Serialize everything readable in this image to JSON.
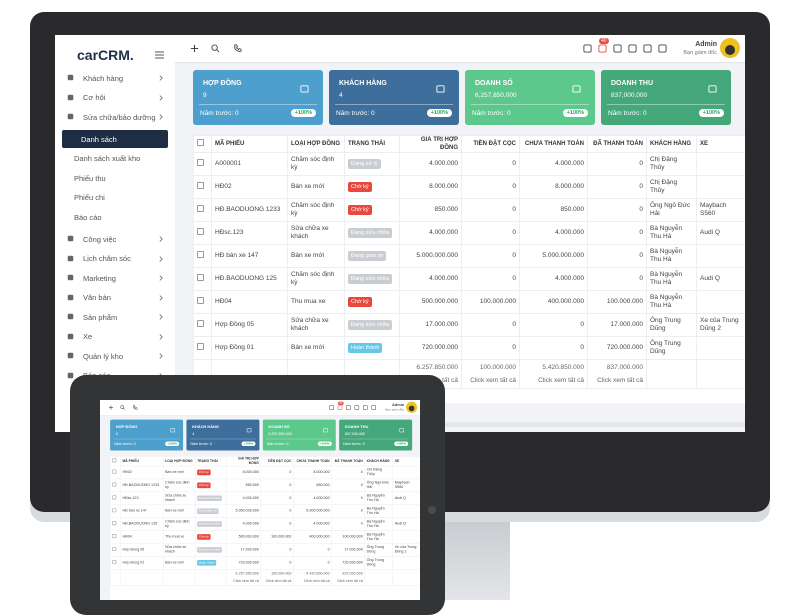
{
  "app": {
    "logo": "carCRM.",
    "notification_count": "40",
    "user": {
      "name": "Admin",
      "role": "Bạn giám đốc"
    },
    "menu": [
      {
        "label": "Khách hàng"
      },
      {
        "label": "Cơ hội"
      },
      {
        "label": "Sửa chữa/bảo dưỡng"
      },
      {
        "label": "Danh sách",
        "sub": true,
        "active": true
      },
      {
        "label": "Danh sách xuất kho",
        "sub": true
      },
      {
        "label": "Phiếu thu",
        "sub": true
      },
      {
        "label": "Phiếu chi",
        "sub": true
      },
      {
        "label": "Báo cáo",
        "sub": true
      },
      {
        "label": "Công việc"
      },
      {
        "label": "Lịch chăm sóc"
      },
      {
        "label": "Marketing"
      },
      {
        "label": "Văn bản"
      },
      {
        "label": "Sản phẩm"
      },
      {
        "label": "Xe"
      },
      {
        "label": "Quản lý kho"
      },
      {
        "label": "Báo cáo"
      }
    ],
    "cards": [
      {
        "title": "HỢP ĐỒNG",
        "value": "9",
        "previous": "Năm trước: 0",
        "change": "+100%",
        "color": "#4d9fce"
      },
      {
        "title": "KHÁCH HÀNG",
        "value": "4",
        "previous": "Năm trước: 0",
        "change": "+100%",
        "color": "#3e6f9c"
      },
      {
        "title": "DOANH SỐ",
        "value": "6,257,850,000",
        "previous": "Năm trước: 0",
        "change": "+100%",
        "color": "#5cc88c"
      },
      {
        "title": "DOANH THU",
        "value": "837,000,000",
        "previous": "Năm trước: 0",
        "change": "+100%",
        "color": "#45a87b"
      }
    ],
    "status_colors": {
      "Đang xử lý": "#c9cdd2",
      "Chờ ký": "#e8493f",
      "Đang sửa chữa": "#c9cdd2",
      "Đang giao xe": "#c9cdd2",
      "Hoàn thành": "#67c7e6"
    },
    "table": {
      "headers": [
        "MÃ PHIẾU",
        "LOẠI HỢP ĐỒNG",
        "TRẠNG THÁI",
        "GIÁ TRỊ HỢP ĐỒNG",
        "TIỀN ĐẶT CỌC",
        "CHƯA THANH TOÁN",
        "ĐÃ THANH TOÁN",
        "KHÁCH HÀNG",
        "XE"
      ],
      "rows": [
        [
          "A000001",
          "Chăm sóc định kỳ",
          "Đang xử lý",
          "4.000.000",
          "0",
          "4.000.000",
          "0",
          "Chị Đặng Thủy",
          null
        ],
        [
          "HĐ02",
          "Bán xe mới",
          "Chờ ký",
          "8.000.000",
          "0",
          "8.000.000",
          "0",
          "Chị Đặng Thủy",
          null
        ],
        [
          "HĐ.BAODUONG 1233",
          "Chăm sóc định kỳ",
          "Chờ ký",
          "850.000",
          "0",
          "850.000",
          "0",
          "Ông Ngô Đức Hải",
          "Maybach S560"
        ],
        [
          "HĐsc.123",
          "Sửa chữa xe khách",
          "Đang sửa chữa",
          "4.000.000",
          "0",
          "4.000.000",
          "0",
          "Bà Nguyễn Thu Hà",
          "Audi Q"
        ],
        [
          "HĐ bán xe 147",
          "Bán xe mới",
          "Đang giao xe",
          "5.000.000.000",
          "0",
          "5.000.000.000",
          "0",
          "Bà Nguyễn Thu Hà",
          null
        ],
        [
          "HĐ.BAODUONG 125",
          "Chăm sóc định kỳ",
          "Đang sửa chữa",
          "4.000.000",
          "0",
          "4.000.000",
          "0",
          "Bà Nguyễn Thu Hà",
          "Audi Q"
        ],
        [
          "HĐ04",
          "Thu mua xe",
          "Chờ ký",
          "500.000.000",
          "100.000.000",
          "400.000.000",
          "100.000.000",
          "Bà Nguyễn Thu Hà",
          null
        ],
        [
          "Hợp Đồng 05",
          "Sửa chữa xe khách",
          "Đang sửa chữa",
          "17.000.000",
          "0",
          "0",
          "17.000.000",
          "Ông Trung Dũng",
          "Xe của Trung Dũng 2"
        ],
        [
          "Hợp Đồng 01",
          "Bán xe mới",
          "Hoàn thành",
          "720.000.000",
          "0",
          "0",
          "720.000.000",
          "Ông Trung Dũng",
          null
        ]
      ],
      "totals": [
        "6.257.850.000",
        "100.000.000",
        "5.420.850.000",
        "837.000.000"
      ],
      "link": "Click xem tất cả"
    }
  }
}
